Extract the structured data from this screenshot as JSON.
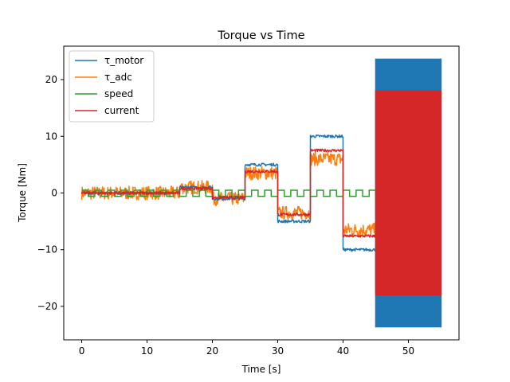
{
  "chart_data": {
    "type": "line",
    "title": "Torque vs Time",
    "xlabel": "Time [s]",
    "ylabel": "Torque [Nm]",
    "xlim": [
      -2.75,
      57.75
    ],
    "ylim": [
      -25.9,
      25.9
    ],
    "xticks": [
      0,
      10,
      20,
      30,
      40,
      50
    ],
    "yticks": [
      -20,
      -10,
      0,
      10,
      20
    ],
    "grid": false,
    "legend_position": "top-left",
    "series": [
      {
        "name": "τ_motor",
        "color": "#1f77b4",
        "segments": [
          {
            "t0": 0,
            "t1": 5,
            "level": 0
          },
          {
            "t0": 5,
            "t1": 10,
            "level": 0
          },
          {
            "t0": 10,
            "t1": 15,
            "level": 0
          },
          {
            "t0": 15,
            "t1": 20,
            "level": 1
          },
          {
            "t0": 20,
            "t1": 25,
            "level": -1
          },
          {
            "t0": 25,
            "t1": 30,
            "level": 5
          },
          {
            "t0": 30,
            "t1": 35,
            "level": -5
          },
          {
            "t0": 35,
            "t1": 40,
            "level": 10
          },
          {
            "t0": 40,
            "t1": 45,
            "level": -10
          }
        ],
        "oscillation": {
          "t0": 45,
          "t1": 55,
          "min": -23.6,
          "max": 23.6
        }
      },
      {
        "name": "τ_adc",
        "color": "#ff7f0e",
        "segments": [
          {
            "t0": 0,
            "t1": 5,
            "level": 0
          },
          {
            "t0": 5,
            "t1": 10,
            "level": 0
          },
          {
            "t0": 10,
            "t1": 15,
            "level": 0
          },
          {
            "t0": 15,
            "t1": 20,
            "level": 1
          },
          {
            "t0": 20,
            "t1": 25,
            "level": -1
          },
          {
            "t0": 25,
            "t1": 30,
            "level": 3.5
          },
          {
            "t0": 30,
            "t1": 35,
            "level": -3.5
          },
          {
            "t0": 35,
            "t1": 40,
            "level": 6
          },
          {
            "t0": 40,
            "t1": 45,
            "level": -6.5
          }
        ],
        "noise": 1.2
      },
      {
        "name": "speed",
        "color": "#2ca02c",
        "square_wave": {
          "t0": 0,
          "t1": 55,
          "period": 2,
          "high": 0.5,
          "low": -0.6
        }
      },
      {
        "name": "current",
        "color": "#d62728",
        "segments": [
          {
            "t0": 0,
            "t1": 5,
            "level": 0
          },
          {
            "t0": 5,
            "t1": 10,
            "level": 0
          },
          {
            "t0": 10,
            "t1": 15,
            "level": 0
          },
          {
            "t0": 15,
            "t1": 20,
            "level": 0.8
          },
          {
            "t0": 20,
            "t1": 25,
            "level": -0.8
          },
          {
            "t0": 25,
            "t1": 30,
            "level": 3.8
          },
          {
            "t0": 30,
            "t1": 35,
            "level": -3.8
          },
          {
            "t0": 35,
            "t1": 40,
            "level": 7.5
          },
          {
            "t0": 40,
            "t1": 45,
            "level": -7.6
          }
        ],
        "oscillation": {
          "t0": 45,
          "t1": 55,
          "min": -18,
          "max": 18
        }
      }
    ]
  }
}
